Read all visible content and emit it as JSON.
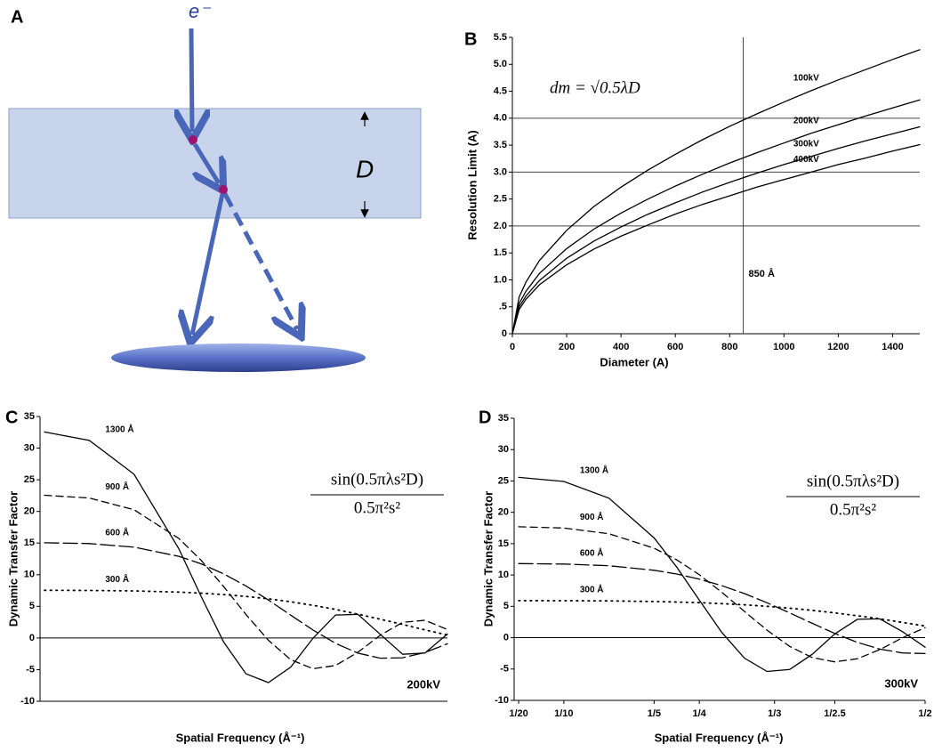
{
  "diagram": {
    "label": "A",
    "electron": "e⁻",
    "thickness": "D"
  },
  "chart_data": [
    {
      "type": "line",
      "panel_label": "B",
      "xlabel": "Diameter (A)",
      "ylabel": "Resolution Limit (A)",
      "formula": "dm = √0.5λD",
      "x": [
        0,
        25,
        50,
        100,
        200,
        300,
        400,
        500,
        600,
        700,
        800,
        900,
        1000,
        1100,
        1200,
        1300,
        1400,
        1500
      ],
      "series": [
        {
          "name": "100kV",
          "color": "#000000",
          "dash": "solid",
          "values": [
            0,
            0.68,
            0.96,
            1.36,
            1.92,
            2.36,
            2.72,
            3.04,
            3.33,
            3.6,
            3.85,
            4.08,
            4.3,
            4.51,
            4.71,
            4.9,
            5.09,
            5.27
          ]
        },
        {
          "name": "200kV",
          "color": "#000000",
          "dash": "solid",
          "values": [
            0,
            0.56,
            0.79,
            1.12,
            1.58,
            1.94,
            2.24,
            2.5,
            2.74,
            2.96,
            3.17,
            3.36,
            3.54,
            3.72,
            3.88,
            4.04,
            4.19,
            4.34
          ]
        },
        {
          "name": "300kV",
          "color": "#000000",
          "dash": "solid",
          "values": [
            0,
            0.5,
            0.7,
            0.99,
            1.4,
            1.72,
            1.98,
            2.22,
            2.43,
            2.63,
            2.81,
            2.98,
            3.14,
            3.29,
            3.44,
            3.58,
            3.71,
            3.84
          ]
        },
        {
          "name": "400kV",
          "color": "#000000",
          "dash": "solid",
          "values": [
            0,
            0.45,
            0.64,
            0.91,
            1.28,
            1.57,
            1.81,
            2.02,
            2.22,
            2.4,
            2.56,
            2.72,
            2.86,
            3,
            3.14,
            3.26,
            3.39,
            3.51
          ]
        }
      ],
      "xlim": [
        0,
        1500
      ],
      "ylim": [
        0,
        5.5
      ],
      "xticks": [
        0,
        200,
        400,
        600,
        800,
        1000,
        1200,
        1400
      ],
      "yticks": [
        0,
        {
          "value": 0.5,
          "label": ".5"
        },
        {
          "value": 1,
          "label": "1.0"
        },
        1.5,
        {
          "value": 2,
          "label": "2.0"
        },
        2.5,
        {
          "value": 3,
          "label": "3.0"
        },
        3.5,
        {
          "value": 4,
          "label": "4.0"
        },
        4.5,
        {
          "value": 5,
          "label": "5.0"
        },
        5.5
      ],
      "hlines": [
        2,
        3,
        4
      ],
      "vline": 850,
      "vline_label": "850 Å"
    },
    {
      "type": "line",
      "panel_label": "C",
      "xlabel": "Spatial Frequency (Å⁻¹)",
      "ylabel": "Dynamic Transfer Factor",
      "formula": {
        "numerator": "sin(0.5πλs²D)",
        "denominator": "0.5π²s²"
      },
      "annotation": "200kV",
      "x": [
        0.05,
        0.1,
        0.15,
        0.2,
        0.225,
        0.25,
        0.275,
        0.3,
        0.325,
        0.35,
        0.375,
        0.4,
        0.425,
        0.45,
        0.475,
        0.5
      ],
      "series": [
        {
          "name": "1300 Å",
          "color": "#000000",
          "dash": "solid",
          "values": [
            32.55,
            31.23,
            25.87,
            14.12,
            6.54,
            -0.63,
            -5.65,
            -7.04,
            -4.61,
            -0.02,
            3.62,
            3.74,
            0.58,
            -2.57,
            -2.38,
            0.63
          ]
        },
        {
          "name": "900 Å",
          "color": "#000000",
          "dash": "dash",
          "values": [
            22.56,
            22.12,
            20.26,
            15.73,
            12.26,
            8.12,
            3.72,
            -0.36,
            -3.43,
            -4.85,
            -4.35,
            -2.27,
            0.44,
            2.47,
            2.79,
            1.34
          ]
        },
        {
          "name": "600 Å",
          "color": "#000000",
          "dash": "long-dash",
          "values": [
            15.05,
            14.92,
            14.36,
            12.91,
            11.71,
            10.14,
            8.22,
            6,
            3.61,
            1.25,
            -0.84,
            -2.39,
            -3.19,
            -3.13,
            -2.29,
            -0.92
          ]
        },
        {
          "name": "300 Å",
          "color": "#000000",
          "dash": "dot",
          "values": [
            7.53,
            7.51,
            7.44,
            7.25,
            7.09,
            6.86,
            6.57,
            6.19,
            5.72,
            5.16,
            4.51,
            3.77,
            2.97,
            2.13,
            1.28,
            0.47
          ]
        }
      ],
      "xlim": [
        0.045,
        0.5
      ],
      "ylim": [
        -10,
        35
      ],
      "yticks": [
        -10,
        -5,
        0,
        5,
        10,
        15,
        20,
        25,
        30,
        35
      ]
    },
    {
      "type": "line",
      "panel_label": "D",
      "xlabel": "Spatial Frequency (Å⁻¹)",
      "ylabel": "Dynamic Transfer Factor",
      "formula": {
        "numerator": "sin(0.5πλs²D)",
        "denominator": "0.5π²s²"
      },
      "annotation": "300kV",
      "x": [
        0.05,
        0.1,
        0.15,
        0.2,
        0.225,
        0.25,
        0.275,
        0.3,
        0.325,
        0.35,
        0.375,
        0.4,
        0.425,
        0.45,
        0.475,
        0.5
      ],
      "series": [
        {
          "name": "1300 Å",
          "color": "#000000",
          "dash": "solid",
          "values": [
            25.57,
            24.92,
            22.25,
            15.9,
            11.25,
            5.98,
            0.83,
            -3.26,
            -5.39,
            -5.08,
            -2.65,
            0.61,
            2.93,
            3.01,
            0.96,
            -1.51
          ]
        },
        {
          "name": "900 Å",
          "color": "#000000",
          "dash": "dash",
          "values": [
            17.7,
            17.5,
            16.59,
            14.28,
            12.41,
            10.04,
            7.24,
            4.2,
            1.2,
            -1.39,
            -3.17,
            -3.85,
            -3.35,
            -1.89,
            0,
            1.6
          ]
        },
        {
          "name": "600 Å",
          "color": "#000000",
          "dash": "long-dash",
          "values": [
            11.82,
            11.75,
            11.48,
            10.76,
            10.16,
            9.34,
            8.3,
            7.04,
            5.57,
            3.96,
            2.29,
            0.68,
            -0.74,
            -1.82,
            -2.44,
            -2.54
          ]
        },
        {
          "name": "300 Å",
          "color": "#000000",
          "dash": "dot",
          "values": [
            5.91,
            5.9,
            5.87,
            5.77,
            5.69,
            5.58,
            5.43,
            5.24,
            5,
            4.71,
            4.37,
            3.96,
            3.5,
            3,
            2.44,
            1.86
          ]
        }
      ],
      "xlim": [
        0.045,
        0.5
      ],
      "ylim": [
        -10,
        35
      ],
      "yticks": [
        -10,
        -5,
        0,
        5,
        10,
        15,
        20,
        25,
        30,
        35
      ],
      "xticks": [
        {
          "value": 0.05,
          "label": "1/20"
        },
        {
          "value": 0.1,
          "label": "1/10"
        },
        {
          "value": 0.2,
          "label": "1/5"
        },
        {
          "value": 0.25,
          "label": "1/4"
        },
        {
          "value": 0.3333,
          "label": "1/3"
        },
        {
          "value": 0.4,
          "label": "1/2.5"
        },
        {
          "value": 0.5,
          "label": "1/2"
        }
      ]
    }
  ]
}
